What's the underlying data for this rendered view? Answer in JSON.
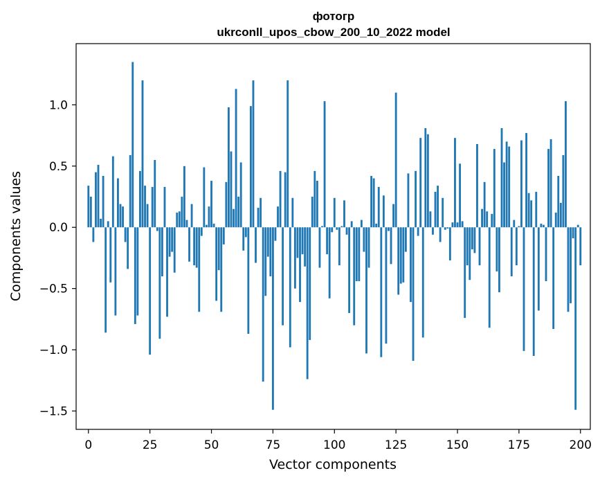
{
  "chart_data": {
    "type": "bar",
    "title_lines": [
      "фотогр",
      "ukrconll_upos_cbow_200_10_2022 model"
    ],
    "xlabel": "Vector components",
    "ylabel": "Components values",
    "xlim": [
      -5,
      204
    ],
    "ylim": [
      -1.65,
      1.5
    ],
    "xticks": [
      0,
      25,
      50,
      75,
      100,
      125,
      150,
      175,
      200
    ],
    "yticks": [
      -1.5,
      -1.0,
      -0.5,
      0.0,
      0.5,
      1.0
    ],
    "ytick_labels": [
      "−1.5",
      "−1.0",
      "−0.5",
      "0.0",
      "0.5",
      "1.0"
    ],
    "bar_color": "#1f77b4",
    "grid": false,
    "legend": false,
    "values": [
      0.34,
      0.25,
      -0.12,
      0.45,
      0.51,
      0.07,
      0.42,
      -0.86,
      0.05,
      -0.45,
      0.58,
      -0.72,
      0.4,
      0.19,
      0.17,
      -0.12,
      -0.34,
      0.59,
      1.35,
      -0.79,
      -0.72,
      0.46,
      1.2,
      0.34,
      0.19,
      -1.04,
      0.33,
      0.55,
      -0.03,
      -0.91,
      -0.4,
      0.33,
      -0.73,
      -0.24,
      -0.2,
      -0.37,
      0.12,
      0.13,
      0.25,
      0.5,
      0.06,
      -0.28,
      0.19,
      -0.31,
      -0.33,
      -0.69,
      -0.07,
      0.49,
      0.02,
      0.17,
      0.38,
      0.03,
      -0.6,
      -0.35,
      -0.69,
      -0.14,
      0.37,
      0.98,
      0.62,
      0.15,
      1.13,
      0.25,
      0.53,
      -0.19,
      -0.08,
      -0.87,
      0.99,
      1.2,
      -0.29,
      0.16,
      0.24,
      -1.26,
      -0.56,
      -0.24,
      -0.4,
      -1.49,
      -0.11,
      0.17,
      0.46,
      -0.8,
      0.45,
      1.2,
      -0.98,
      0.24,
      -0.5,
      -0.25,
      -0.61,
      -0.22,
      -0.32,
      -1.24,
      -0.92,
      0.25,
      0.46,
      0.38,
      -0.33,
      0.01,
      1.03,
      -0.22,
      -0.58,
      -0.04,
      0.24,
      -0.02,
      -0.31,
      0.01,
      0.22,
      -0.06,
      -0.7,
      0.05,
      -0.8,
      -0.44,
      -0.44,
      0.06,
      -0.2,
      -1.03,
      -0.33,
      0.42,
      0.4,
      0.03,
      0.33,
      -1.06,
      0.26,
      -0.95,
      -0.03,
      -0.3,
      0.19,
      1.1,
      -0.55,
      -0.46,
      -0.45,
      -0.2,
      0.44,
      -0.61,
      -1.09,
      0.46,
      -0.07,
      0.73,
      -0.9,
      0.81,
      0.76,
      0.13,
      -0.06,
      0.29,
      0.34,
      -0.12,
      0.24,
      -0.02,
      -0.01,
      -0.27,
      0.04,
      0.73,
      0.04,
      0.52,
      0.05,
      -0.74,
      -0.31,
      -0.43,
      -0.18,
      -0.21,
      0.68,
      -0.31,
      0.15,
      0.37,
      0.13,
      -0.82,
      0.11,
      0.64,
      -0.36,
      -0.53,
      0.81,
      0.53,
      0.7,
      0.66,
      -0.4,
      0.06,
      -0.31,
      0.01,
      0.71,
      -1.01,
      0.77,
      0.28,
      0.22,
      -1.05,
      0.29,
      -0.68,
      0.03,
      0.02,
      -0.44,
      0.64,
      0.72,
      -0.83,
      0.12,
      0.42,
      0.2,
      0.59,
      1.03,
      -0.69,
      -0.62,
      -0.09,
      -1.49,
      0.02,
      -0.31
    ]
  }
}
